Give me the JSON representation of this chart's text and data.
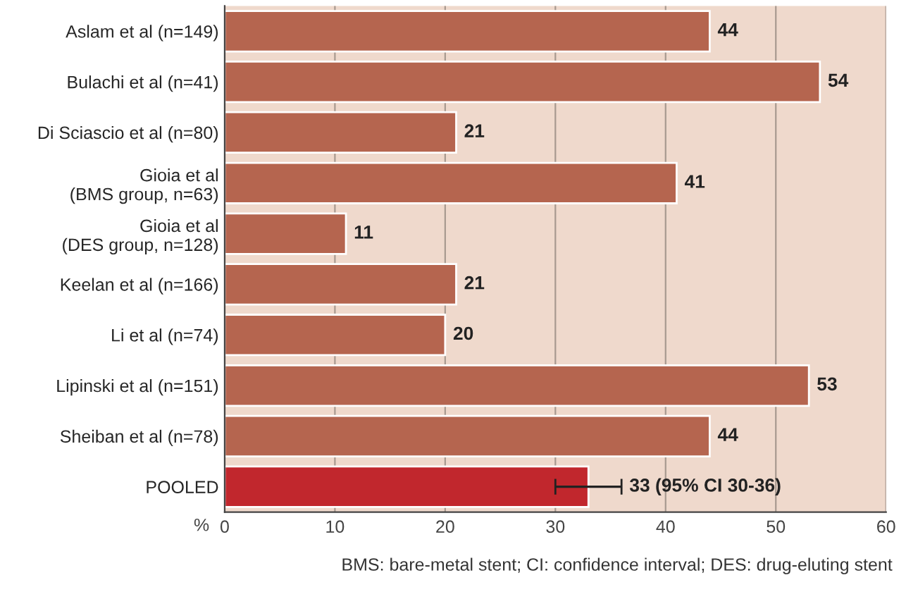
{
  "chart_data": {
    "type": "bar",
    "orientation": "horizontal",
    "categories": [
      "Aslam et al (n=149)",
      "Bulachi et al (n=41)",
      "Di Sciascio et al (n=80)",
      "Gioia et al\n(BMS group, n=63)",
      "Gioia et al\n(DES group, n=128)",
      "Keelan et al (n=166)",
      "Li et al (n=74)",
      "Lipinski et al (n=151)",
      "Sheiban et al (n=78)",
      "POOLED"
    ],
    "values": [
      44,
      54,
      21,
      41,
      11,
      21,
      20,
      53,
      44,
      33
    ],
    "colors": [
      "#b5654f",
      "#b5654f",
      "#b5654f",
      "#b5654f",
      "#b5654f",
      "#b5654f",
      "#b5654f",
      "#b5654f",
      "#b5654f",
      "#c1272d"
    ],
    "errors": [
      null,
      null,
      null,
      null,
      null,
      null,
      null,
      null,
      null,
      [
        30,
        36
      ]
    ],
    "value_labels": [
      "44",
      "54",
      "21",
      "41",
      "11",
      "21",
      "20",
      "53",
      "44",
      "33 (95% CI 30-36)"
    ],
    "xlabel": "%",
    "xlim": [
      0,
      60
    ],
    "xticks": [
      0,
      10,
      20,
      30,
      40,
      50,
      60
    ],
    "grid": "x",
    "annotations": [
      "BMS: bare-metal stent; CI: confidence interval; DES: drug-eluting stent"
    ]
  }
}
